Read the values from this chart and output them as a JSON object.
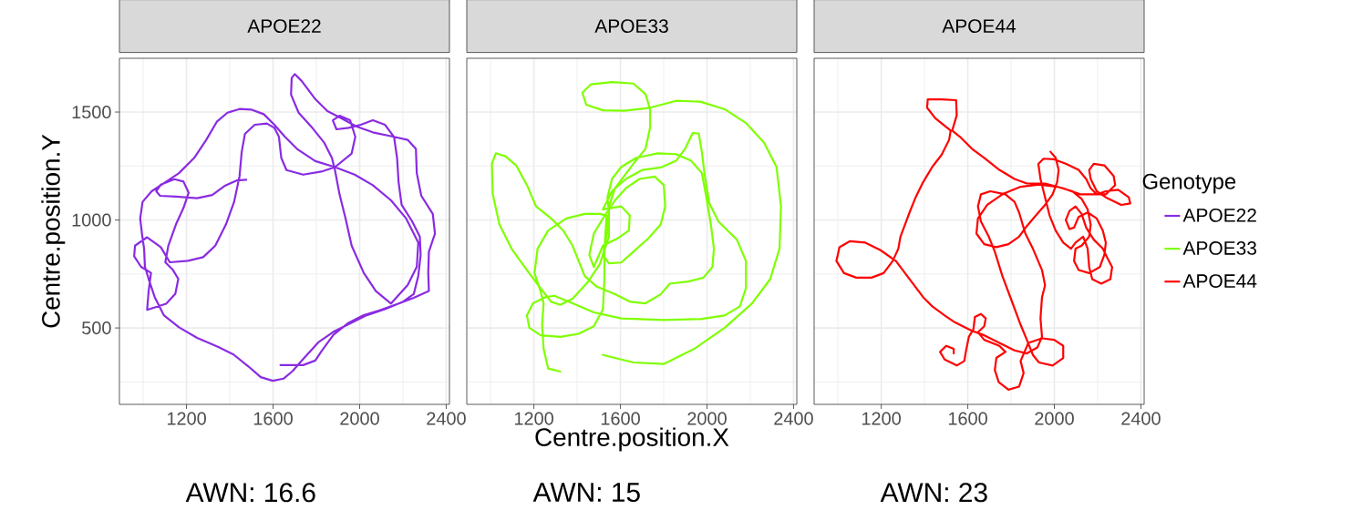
{
  "chart_data": [
    {
      "type": "line",
      "title": "APOE22",
      "ylabel": "Centre.position.Y",
      "xlim": [
        890,
        2415
      ],
      "ylim": [
        146,
        1749
      ],
      "xticks": [
        {
          "value": 1000,
          "label": null
        },
        1200,
        {
          "value": 1400,
          "label": null
        },
        1600,
        {
          "value": 1800,
          "label": null
        },
        2000,
        {
          "value": 2200,
          "label": null
        },
        2400
      ],
      "yticks": [
        {
          "value": 250,
          "label": null
        },
        500,
        {
          "value": 750,
          "label": null
        },
        1000,
        {
          "value": 1250,
          "label": null
        },
        1500
      ],
      "grid": true,
      "annotations": [
        "AWN: 16.6"
      ],
      "series": [
        {
          "name": "APOE22",
          "color": "#8a2be2",
          "x": [
            1476,
            1431,
            1375,
            1319,
            1249,
            1151,
            1078,
            1060,
            1081,
            1144,
            1186,
            1210,
            1186,
            1151,
            1116,
            1102,
            1137,
            1162,
            1148,
            1106,
            1018,
            1025,
            1036,
            990,
            958,
            962,
            1018,
            1081,
            1123,
            1207,
            1277,
            1333,
            1382,
            1420,
            1445,
            1455,
            1470,
            1515,
            1571,
            1606,
            1627,
            1638,
            1662,
            1739,
            1823,
            1886,
            1963,
            1980,
            1956,
            1907,
            1876,
            1893,
            1949,
            2005,
            2061,
            2117,
            2159,
            2173,
            2180,
            2194,
            2243,
            2278,
            2282,
            2271,
            2250,
            2201,
            2117,
            2033,
            1949,
            1879,
            1809,
            1739,
            1690,
            1648,
            1599,
            1543,
            1487,
            1417,
            1347,
            1249,
            1165,
            1095,
            1053,
            1025,
            1008,
            1004,
            994,
            986,
            997,
            1039,
            1102,
            1165,
            1235,
            1291,
            1340,
            1389,
            1445,
            1501,
            1557,
            1606,
            1655,
            1711,
            1795,
            1886,
            1977,
            2061,
            2145,
            2215,
            2271,
            2264,
            2222,
            2145,
            2075,
            2019,
            1963,
            1935,
            1907,
            1886,
            1872,
            1837,
            1781,
            1718,
            1683,
            1686,
            1700,
            1732,
            1795,
            1851,
            1907,
            1984,
            2061,
            2159,
            2222,
            2260,
            2264,
            2285,
            2338,
            2348,
            2320,
            2317,
            2320,
            2250,
            2187,
            2089,
            2019,
            1949,
            1879,
            1823,
            1795,
            1739,
            1634
          ],
          "values": [
            1186,
            1183,
            1157,
            1116,
            1101,
            1108,
            1112,
            1133,
            1164,
            1189,
            1178,
            1126,
            1056,
            979,
            881,
            804,
            769,
            727,
            657,
            612,
            584,
            671,
            755,
            783,
            832,
            881,
            920,
            874,
            804,
            811,
            828,
            881,
            979,
            1084,
            1203,
            1315,
            1399,
            1441,
            1447,
            1427,
            1385,
            1287,
            1231,
            1210,
            1224,
            1245,
            1308,
            1385,
            1462,
            1483,
            1462,
            1420,
            1427,
            1441,
            1462,
            1441,
            1385,
            1287,
            1175,
            1070,
            993,
            923,
            839,
            741,
            657,
            622,
            587,
            559,
            517,
            482,
            433,
            356,
            300,
            265,
            255,
            272,
            321,
            377,
            412,
            454,
            503,
            559,
            643,
            727,
            783,
            867,
            937,
            1007,
            1084,
            1133,
            1175,
            1217,
            1287,
            1371,
            1455,
            1497,
            1514,
            1511,
            1490,
            1441,
            1385,
            1329,
            1273,
            1245,
            1210,
            1161,
            1091,
            1007,
            895,
            783,
            699,
            613,
            671,
            755,
            881,
            1007,
            1119,
            1231,
            1287,
            1357,
            1427,
            1497,
            1581,
            1658,
            1676,
            1644,
            1560,
            1504,
            1476,
            1434,
            1406,
            1385,
            1371,
            1329,
            1217,
            1112,
            1028,
            937,
            853,
            755,
            671,
            640,
            615,
            580,
            559,
            524,
            468,
            391,
            349,
            328,
            328
          ]
        }
      ]
    },
    {
      "type": "line",
      "title": "APOE33",
      "xlabel": "Centre.position.X",
      "xlim": [
        890,
        2415
      ],
      "ylim": [
        146,
        1749
      ],
      "tick_labels": "x",
      "xticks": [
        {
          "value": 1000,
          "label": null
        },
        1200,
        {
          "value": 1400,
          "label": null
        },
        1600,
        {
          "value": 1800,
          "label": null
        },
        2000,
        {
          "value": 2200,
          "label": null
        },
        2400
      ],
      "yticks": [
        {
          "value": 250,
          "label": null
        },
        500,
        {
          "value": 750,
          "label": null
        },
        1000,
        {
          "value": 1250,
          "label": null
        },
        1500
      ],
      "grid": true,
      "annotations": [
        "AWN: 15"
      ],
      "series": [
        {
          "name": "APOE33",
          "color": "#7fff00",
          "x": [
            1322,
            1266,
            1245,
            1238,
            1245,
            1231,
            1203,
            1217,
            1266,
            1350,
            1435,
            1505,
            1536,
            1526,
            1526,
            1519,
            1477,
            1407,
            1322,
            1231,
            1179,
            1168,
            1196,
            1252,
            1294,
            1379,
            1477,
            1604,
            1800,
            1969,
            2082,
            2152,
            2180,
            2180,
            2138,
            2053,
            2011,
            1990,
            1976,
            1962,
            1934,
            1899,
            1857,
            1786,
            1702,
            1625,
            1561,
            1519,
            1604,
            1643,
            1639,
            1589,
            1519,
            1477,
            1456,
            1477,
            1519,
            1575,
            1625,
            1688,
            1758,
            1800,
            1807,
            1786,
            1730,
            1660,
            1604,
            1547,
            1519,
            1540,
            1547,
            1540,
            1561,
            1604,
            1674,
            1772,
            1857,
            1927,
            1976,
            1997,
            2018,
            2032,
            2025,
            1983,
            1913,
            1828,
            1786,
            1716,
            1646,
            1575,
            1491,
            1435,
            1407,
            1379,
            1336,
            1280,
            1210,
            1168,
            1118,
            1069,
            1024,
            1006,
            1010,
            1041,
            1097,
            1168,
            1231,
            1280,
            1322,
            1379,
            1449,
            1505,
            1547,
            1547,
            1575,
            1660,
            1716,
            1737,
            1737,
            1716,
            1660,
            1561,
            1463,
            1424,
            1442,
            1519,
            1618,
            1737,
            1857,
            1969,
            2082,
            2180,
            2264,
            2321,
            2342,
            2335,
            2292,
            2208,
            2082,
            1941,
            1800,
            1660,
            1519
          ],
          "values": [
            298,
            312,
            403,
            515,
            614,
            670,
            754,
            867,
            951,
            1007,
            1028,
            1028,
            1021,
            867,
            726,
            586,
            508,
            473,
            459,
            466,
            501,
            558,
            614,
            642,
            649,
            614,
            572,
            544,
            537,
            541,
            558,
            600,
            684,
            810,
            909,
            993,
            1077,
            1204,
            1316,
            1400,
            1403,
            1330,
            1274,
            1243,
            1232,
            1190,
            1133,
            1049,
            1063,
            1021,
            951,
            916,
            881,
            782,
            838,
            937,
            1007,
            1091,
            1147,
            1190,
            1201,
            1162,
            1063,
            979,
            916,
            853,
            803,
            799,
            838,
            951,
            1035,
            1105,
            1190,
            1246,
            1288,
            1309,
            1305,
            1274,
            1218,
            1105,
            979,
            867,
            782,
            733,
            715,
            705,
            656,
            614,
            621,
            656,
            691,
            740,
            810,
            881,
            951,
            1007,
            1063,
            1162,
            1253,
            1295,
            1309,
            1260,
            1119,
            979,
            867,
            768,
            684,
            621,
            607,
            635,
            712,
            796,
            923,
            1063,
            1147,
            1260,
            1330,
            1428,
            1513,
            1583,
            1632,
            1639,
            1628,
            1590,
            1534,
            1508,
            1506,
            1520,
            1552,
            1548,
            1513,
            1449,
            1358,
            1246,
            1063,
            867,
            726,
            614,
            501,
            403,
            333,
            340,
            375
          ]
        }
      ]
    },
    {
      "type": "line",
      "title": "APOE44",
      "xlim": [
        890,
        2415
      ],
      "ylim": [
        146,
        1749
      ],
      "tick_labels": "x",
      "xticks": [
        {
          "value": 1000,
          "label": null
        },
        1200,
        {
          "value": 1400,
          "label": null
        },
        1600,
        {
          "value": 1800,
          "label": null
        },
        2000,
        {
          "value": 2200,
          "label": null
        },
        2400
      ],
      "yticks": [
        {
          "value": 250,
          "label": null
        },
        500,
        {
          "value": 750,
          "label": null
        },
        1000,
        {
          "value": 1250,
          "label": null
        },
        1500
      ],
      "grid": true,
      "annotations": [
        "AWN: 23"
      ],
      "legend": "right",
      "legend_title": "Genotype",
      "series": [
        {
          "name": "APOE44",
          "color": "#ff0000",
          "x": [
            1982,
            2006,
            2020,
            2013,
            1992,
            1957,
            1915,
            1873,
            1837,
            1788,
            1732,
            1676,
            1640,
            1647,
            1690,
            1760,
            1844,
            1929,
            2013,
            2084,
            2126,
            2154,
            2168,
            2161,
            2126,
            2098,
            2091,
            2112,
            2161,
            2210,
            2231,
            2238,
            2224,
            2196,
            2154,
            2112,
            2091,
            2070,
            2053,
            2070,
            2098,
            2126,
            2147,
            2182,
            2224,
            2245,
            2267,
            2259,
            2217,
            2175,
            2161,
            2154,
            2133,
            2098,
            2077,
            2041,
            2006,
            1978,
            1957,
            1936,
            1926,
            1950,
            1999,
            2055,
            2112,
            2147,
            2168,
            2196,
            2238,
            2295,
            2344,
            2351,
            2309,
            2238,
            2196,
            2168,
            2161,
            2182,
            2231,
            2274,
            2281,
            2238,
            2119,
            2041,
            1957,
            1873,
            1816,
            1746,
            1676,
            1619,
            1563,
            1528,
            1549,
            1546,
            1479,
            1415,
            1412,
            1450,
            1521,
            1514,
            1479,
            1436,
            1394,
            1359,
            1331,
            1310,
            1289,
            1279,
            1253,
            1211,
            1155,
            1085,
            1028,
            993,
            1007,
            1056,
            1127,
            1197,
            1268,
            1310,
            1352,
            1394,
            1436,
            1493,
            1535,
            1577,
            1619,
            1676,
            1746,
            1816,
            1873,
            1922,
            1943,
            1936,
            1943,
            1957,
            1943,
            1901,
            1866,
            1837,
            1816,
            1774,
            1704,
            1661,
            1647,
            1661,
            1697,
            1725,
            1760,
            1802,
            1844,
            1873,
            1901,
            1929,
            1992,
            2041,
            2041,
            1999,
            1943,
            1880,
            1844,
            1858,
            1837,
            1788,
            1743,
            1725,
            1732,
            1774,
            1746,
            1676,
            1647,
            1676,
            1683,
            1661,
            1633,
            1626,
            1605,
            1591,
            1584,
            1549,
            1493,
            1472,
            1500,
            1535,
            1535
          ],
          "values": [
            1316,
            1288,
            1232,
            1176,
            1119,
            1070,
            1021,
            972,
            923,
            888,
            874,
            888,
            937,
            1007,
            1070,
            1119,
            1154,
            1164,
            1154,
            1133,
            1098,
            1049,
            979,
            923,
            881,
            867,
            810,
            768,
            754,
            782,
            838,
            895,
            951,
            1007,
            1035,
            1014,
            965,
            958,
            1000,
            1042,
            1063,
            1028,
            965,
            909,
            867,
            824,
            782,
            726,
            705,
            726,
            782,
            867,
            923,
            895,
            867,
            895,
            951,
            1021,
            1105,
            1190,
            1260,
            1284,
            1281,
            1260,
            1232,
            1190,
            1147,
            1119,
            1133,
            1140,
            1105,
            1077,
            1070,
            1105,
            1133,
            1190,
            1232,
            1260,
            1253,
            1204,
            1162,
            1119,
            1119,
            1147,
            1169,
            1169,
            1190,
            1232,
            1288,
            1330,
            1386,
            1414,
            1485,
            1555,
            1559,
            1559,
            1520,
            1471,
            1414,
            1372,
            1302,
            1246,
            1176,
            1105,
            1035,
            979,
            923,
            867,
            810,
            754,
            733,
            733,
            754,
            810,
            874,
            902,
            895,
            860,
            810,
            754,
            698,
            642,
            600,
            558,
            529,
            508,
            487,
            466,
            431,
            396,
            382,
            410,
            459,
            544,
            642,
            698,
            768,
            867,
            937,
            1035,
            1084,
            1119,
            1133,
            1119,
            1063,
            993,
            923,
            853,
            740,
            628,
            515,
            445,
            375,
            340,
            326,
            361,
            417,
            445,
            452,
            431,
            347,
            291,
            228,
            214,
            249,
            305,
            361,
            389,
            417,
            445,
            480,
            508,
            544,
            565,
            551,
            494,
            459,
            389,
            347,
            326,
            354,
            389,
            417,
            403,
            382
          ]
        }
      ]
    }
  ]
}
